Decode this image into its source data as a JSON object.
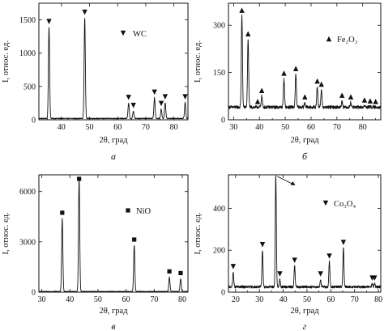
{
  "chart_data": [
    {
      "type": "line",
      "panel": "а",
      "x_tick_labels": [
        "40",
        "50",
        "60",
        "70",
        "80"
      ],
      "y_tick_labels": [
        "0",
        "500",
        "1000",
        "1500"
      ],
      "xlim": [
        32,
        85
      ],
      "ylim": [
        0,
        1750
      ],
      "xlabel": "2θ, град",
      "ylabel": "I, относ. ед.",
      "legend": {
        "text": "WC",
        "marker": "triangle-down",
        "placement": "top-right"
      },
      "baseline": 20,
      "noise": 6,
      "peaks": [
        {
          "x": 35.6,
          "y": 1390
        },
        {
          "x": 48.3,
          "y": 1530
        },
        {
          "x": 63.9,
          "y": 250
        },
        {
          "x": 65.6,
          "y": 130
        },
        {
          "x": 73.1,
          "y": 330
        },
        {
          "x": 75.5,
          "y": 160
        },
        {
          "x": 76.9,
          "y": 260
        },
        {
          "x": 84.0,
          "y": 260
        }
      ],
      "markers": [
        35.6,
        48.3,
        63.9,
        65.6,
        73.1,
        75.5,
        76.9,
        84.0
      ]
    },
    {
      "type": "line",
      "panel": "б",
      "x_tick_labels": [
        "30",
        "40",
        "50",
        "60",
        "70",
        "80"
      ],
      "y_tick_labels": [
        "0",
        "150",
        "300"
      ],
      "xlim": [
        28,
        87
      ],
      "ylim": [
        0,
        370
      ],
      "xlabel": "2θ, град",
      "ylabel": "I, относ. ед.",
      "legend": {
        "text": "Fe₂O₃",
        "marker": "triangle-up",
        "placement": "top-right"
      },
      "baseline": 40,
      "noise": 5,
      "peaks": [
        {
          "x": 33.2,
          "y": 330
        },
        {
          "x": 35.6,
          "y": 255
        },
        {
          "x": 40.9,
          "y": 75
        },
        {
          "x": 49.5,
          "y": 130
        },
        {
          "x": 54.1,
          "y": 145
        },
        {
          "x": 57.6,
          "y": 55
        },
        {
          "x": 62.4,
          "y": 105
        },
        {
          "x": 64.0,
          "y": 95
        },
        {
          "x": 72.0,
          "y": 60
        },
        {
          "x": 75.4,
          "y": 55
        },
        {
          "x": 80.7,
          "y": 45
        },
        {
          "x": 82.9,
          "y": 42
        },
        {
          "x": 85.0,
          "y": 40
        }
      ],
      "markers": [
        33.2,
        35.6,
        39.3,
        40.9,
        49.5,
        54.1,
        57.6,
        62.4,
        64.0,
        72.0,
        75.4,
        80.7,
        82.9,
        85.0
      ]
    },
    {
      "type": "line",
      "panel": "в",
      "x_tick_labels": [
        "30",
        "40",
        "50",
        "60",
        "70",
        "80"
      ],
      "y_tick_labels": [
        "0",
        "3000",
        "6000"
      ],
      "xlim": [
        29,
        82
      ],
      "ylim": [
        0,
        7000
      ],
      "xlabel": "2θ, град",
      "ylabel": "I, относ. ед.",
      "legend": {
        "text": "NiO",
        "marker": "square",
        "placement": "top-right"
      },
      "baseline": 40,
      "noise": 15,
      "peaks": [
        {
          "x": 37.3,
          "y": 4400
        },
        {
          "x": 43.3,
          "y": 6800
        },
        {
          "x": 62.9,
          "y": 2800
        },
        {
          "x": 75.4,
          "y": 900
        },
        {
          "x": 79.4,
          "y": 800
        }
      ],
      "markers": [
        37.3,
        43.3,
        62.9,
        75.4,
        79.4
      ]
    },
    {
      "type": "line",
      "panel": "г",
      "x_tick_labels": [
        "20",
        "30",
        "40",
        "50",
        "60",
        "70",
        "80"
      ],
      "y_tick_labels": [
        "0",
        "200",
        "400"
      ],
      "xlim": [
        17,
        81
      ],
      "ylim": [
        0,
        560
      ],
      "xlabel": "2θ, град",
      "ylabel": "I, относ. ед.",
      "legend": {
        "text": "Co₃O₄",
        "marker": "triangle-down",
        "placement": "top-right"
      },
      "baseline": 25,
      "noise": 6,
      "peaks": [
        {
          "x": 19.0,
          "y": 95
        },
        {
          "x": 31.3,
          "y": 200
        },
        {
          "x": 36.9,
          "y": 560
        },
        {
          "x": 38.6,
          "y": 60
        },
        {
          "x": 44.8,
          "y": 125
        },
        {
          "x": 55.7,
          "y": 60
        },
        {
          "x": 59.4,
          "y": 145
        },
        {
          "x": 65.3,
          "y": 210
        },
        {
          "x": 77.4,
          "y": 40
        },
        {
          "x": 78.4,
          "y": 40
        }
      ],
      "markers": [
        19.0,
        31.3,
        38.6,
        44.8,
        55.7,
        59.4,
        65.3,
        77.4,
        78.4
      ],
      "offscale_arrow_at": 36.9
    }
  ]
}
